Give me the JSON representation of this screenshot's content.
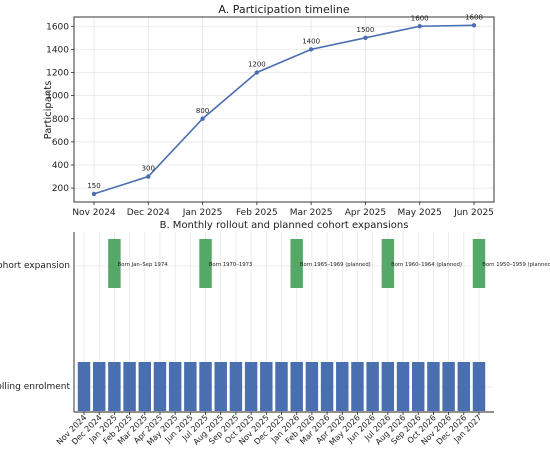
{
  "chart_data": [
    {
      "type": "line",
      "title": "A. Participation timeline",
      "xlabel": "",
      "ylabel": "Participants",
      "x": [
        "Nov 2024",
        "Dec 2024",
        "Jan 2025",
        "Feb 2025",
        "Mar 2025",
        "Apr 2025",
        "May 2025",
        "Jun 2025"
      ],
      "values": [
        150,
        300,
        800,
        1200,
        1400,
        1500,
        1600,
        1608
      ],
      "data_labels": [
        "150",
        "300",
        "800",
        "1200",
        "1400",
        "1500",
        "1600",
        "1608"
      ],
      "y_ticks": [
        "200",
        "400",
        "600",
        "800",
        "1000",
        "1200",
        "1400",
        "1600"
      ],
      "ylim": [
        80,
        1680
      ],
      "grid": true,
      "color": "#4a6fb0"
    },
    {
      "type": "bar",
      "title": "B. Monthly rollout and planned cohort expansions",
      "rows": [
        "Cohort expansion",
        "Rolling enrolment"
      ],
      "months": [
        "Nov 2024",
        "Dec 2024",
        "Jan 2025",
        "Feb 2025",
        "Mar 2025",
        "Apr 2025",
        "May 2025",
        "Jun 2025",
        "Jul 2025",
        "Aug 2025",
        "Sep 2025",
        "Oct 2025",
        "Nov 2025",
        "Dec 2025",
        "Jan 2026",
        "Feb 2026",
        "Mar 2026",
        "Apr 2026",
        "May 2026",
        "Jun 2026",
        "Jul 2026",
        "Aug 2026",
        "Sep 2026",
        "Oct 2026",
        "Nov 2026",
        "Dec 2026",
        "Jan 2027"
      ],
      "rolling_enrolment_months": [
        "Nov 2024",
        "Dec 2024",
        "Jan 2025",
        "Feb 2025",
        "Mar 2025",
        "Apr 2025",
        "May 2025",
        "Jun 2025",
        "Jul 2025",
        "Aug 2025",
        "Sep 2025",
        "Oct 2025",
        "Nov 2025",
        "Dec 2025",
        "Jan 2026",
        "Feb 2026",
        "Mar 2026",
        "Apr 2026",
        "May 2026",
        "Jun 2026",
        "Jul 2026",
        "Aug 2026",
        "Sep 2026",
        "Oct 2026",
        "Nov 2026",
        "Dec 2026",
        "Jan 2027"
      ],
      "cohort_expansions": [
        {
          "month": "Jan 2025",
          "label": "Born Jan–Sep 1974"
        },
        {
          "month": "Jul 2025",
          "label": "Born 1970–1973"
        },
        {
          "month": "Jan 2026",
          "label": "Born 1965–1969 (planned)"
        },
        {
          "month": "Jul 2026",
          "label": "Born 1960–1964 (planned)"
        },
        {
          "month": "Jan 2027",
          "label": "Born 1950–1959 (planned)"
        }
      ],
      "colors": {
        "rolling": "#4a6fb0",
        "cohort": "#55a868"
      },
      "grid": true
    }
  ]
}
